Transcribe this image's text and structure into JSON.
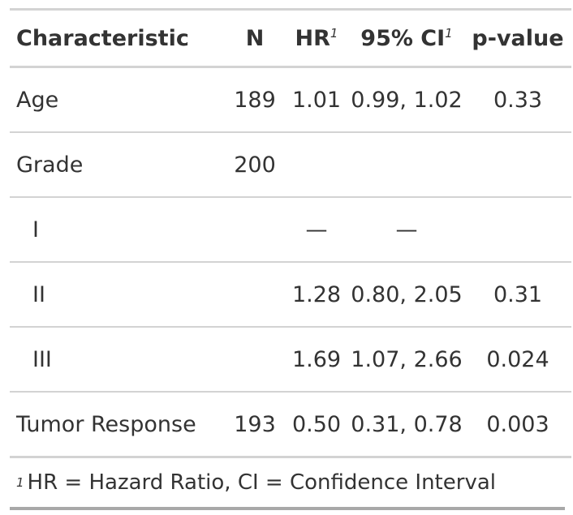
{
  "header": {
    "characteristic": "Characteristic",
    "n": "N",
    "hr": "HR",
    "hr_note": "1",
    "ci": "95% CI",
    "ci_note": "1",
    "p": "p-value"
  },
  "rows": [
    {
      "label": "Age",
      "n": "189",
      "hr": "1.01",
      "ci": "0.99, 1.02",
      "p": "0.33"
    },
    {
      "label": "Grade",
      "n": "200",
      "hr": "",
      "ci": "",
      "p": ""
    },
    {
      "label": "I",
      "n": "",
      "hr": "—",
      "ci": "—",
      "p": ""
    },
    {
      "label": "II",
      "n": "",
      "hr": "1.28",
      "ci": "0.80, 2.05",
      "p": "0.31"
    },
    {
      "label": "III",
      "n": "",
      "hr": "1.69",
      "ci": "1.07, 2.66",
      "p": "0.024"
    },
    {
      "label": "Tumor Response",
      "n": "193",
      "hr": "0.50",
      "ci": "0.31, 0.78",
      "p": "0.003"
    }
  ],
  "footnote": {
    "mark": "1",
    "text": "HR = Hazard Ratio, CI = Confidence Interval"
  }
}
